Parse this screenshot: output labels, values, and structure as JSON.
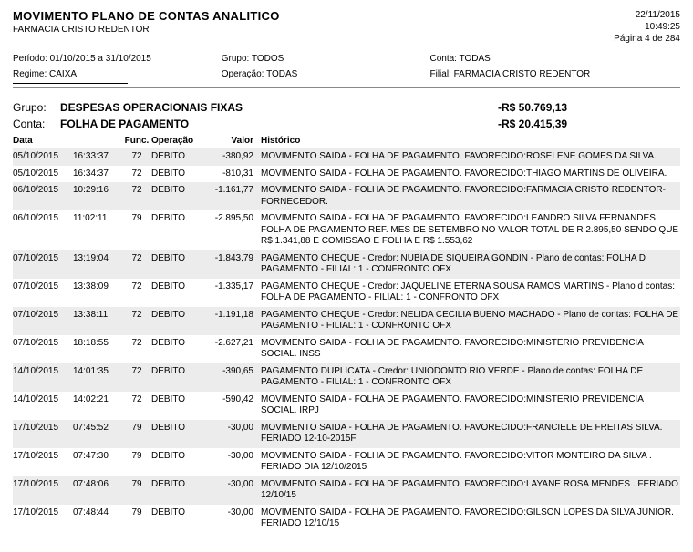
{
  "header": {
    "title": "MOVIMENTO PLANO DE CONTAS ANALITICO",
    "subtitle": "FARMACIA CRISTO REDENTOR",
    "date": "22/11/2015",
    "time": "10:49:25",
    "page": "Página 4 de 284"
  },
  "filters": {
    "periodo_label": "Período:",
    "periodo_value": "01/10/2015 a 31/10/2015",
    "grupo_label": "Grupo:",
    "grupo_value": "TODOS",
    "conta_label": "Conta:",
    "conta_value": "TODAS",
    "regime_label": "Regime:",
    "regime_value": "CAIXA",
    "operacao_label": "Operação:",
    "operacao_value": "TODAS",
    "filial_label": "Filial:",
    "filial_value": "FARMACIA CRISTO REDENTOR"
  },
  "group": {
    "label": "Grupo:",
    "name": "DESPESAS OPERACIONAIS FIXAS",
    "amount": "-R$ 50.769,13"
  },
  "account": {
    "label": "Conta:",
    "name": "FOLHA DE PAGAMENTO",
    "amount": "-R$ 20.415,39"
  },
  "columns": {
    "data": "Data",
    "func": "Func.",
    "oper": "Operação",
    "valor": "Valor",
    "hist": "Histórico"
  },
  "rows": [
    {
      "date": "05/10/2015",
      "time": "16:33:37",
      "func": "72",
      "oper": "DEBITO",
      "valor": "-380,92",
      "hist": "MOVIMENTO SAIDA - FOLHA DE PAGAMENTO. FAVORECIDO:ROSELENE GOMES DA SILVA."
    },
    {
      "date": "05/10/2015",
      "time": "16:34:37",
      "func": "72",
      "oper": "DEBITO",
      "valor": "-810,31",
      "hist": "MOVIMENTO SAIDA - FOLHA DE PAGAMENTO. FAVORECIDO:THIAGO MARTINS DE OLIVEIRA."
    },
    {
      "date": "06/10/2015",
      "time": "10:29:16",
      "func": "72",
      "oper": "DEBITO",
      "valor": "-1.161,77",
      "hist": "MOVIMENTO SAIDA - FOLHA DE PAGAMENTO. FAVORECIDO:FARMACIA CRISTO REDENTOR-FORNECEDOR."
    },
    {
      "date": "06/10/2015",
      "time": "11:02:11",
      "func": "79",
      "oper": "DEBITO",
      "valor": "-2.895,50",
      "hist": "MOVIMENTO SAIDA - FOLHA DE PAGAMENTO. FAVORECIDO:LEANDRO SILVA FERNANDES. FOLHA DE PAGAMENTO REF. MES DE SETEMBRO NO VALOR TOTAL DE R 2.895,50 SENDO QUE R$ 1.341,88 E COMISSAO E FOLHA E R$ 1.553,62"
    },
    {
      "date": "07/10/2015",
      "time": "13:19:04",
      "func": "72",
      "oper": "DEBITO",
      "valor": "-1.843,79",
      "hist": "PAGAMENTO CHEQUE - Credor: NUBIA DE SIQUEIRA GONDIN - Plano de contas: FOLHA D PAGAMENTO - FILIAL: 1 - CONFRONTO OFX"
    },
    {
      "date": "07/10/2015",
      "time": "13:38:09",
      "func": "72",
      "oper": "DEBITO",
      "valor": "-1.335,17",
      "hist": "PAGAMENTO CHEQUE - Credor: JAQUELINE ETERNA SOUSA RAMOS MARTINS - Plano d contas: FOLHA DE PAGAMENTO - FILIAL: 1 - CONFRONTO OFX"
    },
    {
      "date": "07/10/2015",
      "time": "13:38:11",
      "func": "72",
      "oper": "DEBITO",
      "valor": "-1.191,18",
      "hist": "PAGAMENTO CHEQUE - Credor: NELIDA CECILIA BUENO MACHADO - Plano de contas: FOLHA DE PAGAMENTO - FILIAL: 1 - CONFRONTO OFX"
    },
    {
      "date": "07/10/2015",
      "time": "18:18:55",
      "func": "72",
      "oper": "DEBITO",
      "valor": "-2.627,21",
      "hist": "MOVIMENTO SAIDA - FOLHA DE PAGAMENTO. FAVORECIDO:MINISTERIO PREVIDENCIA SOCIAL. INSS"
    },
    {
      "date": "14/10/2015",
      "time": "14:01:35",
      "func": "72",
      "oper": "DEBITO",
      "valor": "-390,65",
      "hist": "PAGAMENTO DUPLICATA - Credor: UNIODONTO RIO VERDE - Plano de contas: FOLHA DE PAGAMENTO - FILIAL: 1 - CONFRONTO OFX"
    },
    {
      "date": "14/10/2015",
      "time": "14:02:21",
      "func": "72",
      "oper": "DEBITO",
      "valor": "-590,42",
      "hist": "MOVIMENTO SAIDA - FOLHA DE PAGAMENTO. FAVORECIDO:MINISTERIO PREVIDENCIA SOCIAL. IRPJ"
    },
    {
      "date": "17/10/2015",
      "time": "07:45:52",
      "func": "79",
      "oper": "DEBITO",
      "valor": "-30,00",
      "hist": "MOVIMENTO SAIDA - FOLHA DE PAGAMENTO. FAVORECIDO:FRANCIELE DE FREITAS SILVA. FERIADO 12-10-2015F"
    },
    {
      "date": "17/10/2015",
      "time": "07:47:30",
      "func": "79",
      "oper": "DEBITO",
      "valor": "-30,00",
      "hist": "MOVIMENTO SAIDA - FOLHA DE PAGAMENTO. FAVORECIDO:VITOR MONTEIRO DA SILVA . FERIADO DIA 12/10/2015"
    },
    {
      "date": "17/10/2015",
      "time": "07:48:06",
      "func": "79",
      "oper": "DEBITO",
      "valor": "-30,00",
      "hist": "MOVIMENTO SAIDA - FOLHA DE PAGAMENTO. FAVORECIDO:LAYANE ROSA MENDES . FERIADO 12/10/15"
    },
    {
      "date": "17/10/2015",
      "time": "07:48:44",
      "func": "79",
      "oper": "DEBITO",
      "valor": "-30,00",
      "hist": "MOVIMENTO SAIDA - FOLHA DE PAGAMENTO. FAVORECIDO:GILSON LOPES DA SILVA JUNIOR. FERIADO 12/10/15"
    }
  ]
}
